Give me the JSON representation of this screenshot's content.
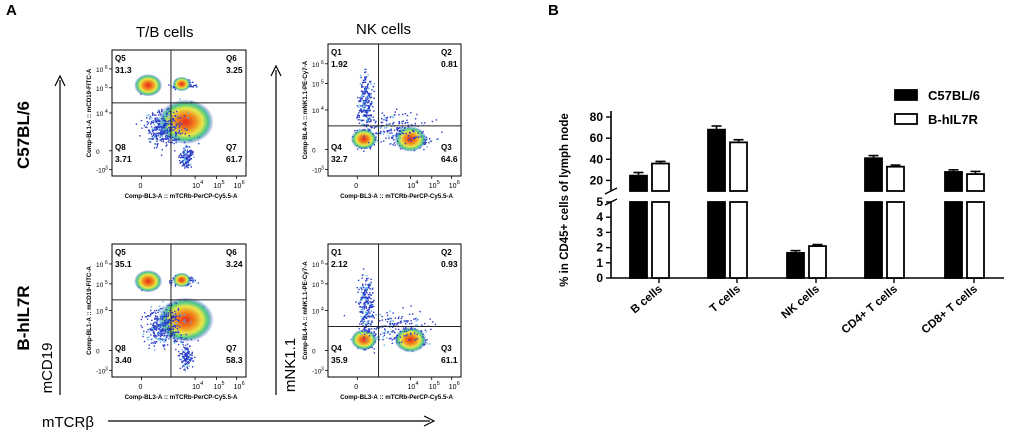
{
  "panels": {
    "a": "A",
    "b": "B"
  },
  "flow": {
    "col_titles": [
      "T/B cells",
      "NK cells"
    ],
    "row_labels": [
      "C57BL/6",
      "B-hIL7R"
    ],
    "axis_arrows": {
      "y_tb": "mCD19",
      "y_nk": "mNK1.1",
      "x": "mTCRβ"
    },
    "tb_y_label": "Comp-BL1-A :: mCD19-FITC-A",
    "tb_x_label": "Comp-BL3-A :: mTCRb-PerCP-Cy5.5-A",
    "nk_y_label": "Comp-BL4-A :: mNK1.1-PE-Cy7-A",
    "nk_x_label": "Comp-BL3-A :: mTCRb-PerCP-Cy5.5-A",
    "tick_labels": {
      "zero": "0",
      "e4": "10",
      "e5": "10",
      "e6": "10",
      "e4_exp": "4",
      "e5_exp": "5",
      "e6_exp": "6",
      "neg": "-10",
      "neg_exp": "3"
    },
    "plots": [
      {
        "gate": "tb",
        "quadrants": [
          {
            "name": "Q5",
            "value": "31.3"
          },
          {
            "name": "Q6",
            "value": "3.25"
          },
          {
            "name": "Q8",
            "value": "3.71"
          },
          {
            "name": "Q7",
            "value": "61.7"
          }
        ]
      },
      {
        "gate": "nk",
        "quadrants": [
          {
            "name": "Q1",
            "value": "1.92"
          },
          {
            "name": "Q2",
            "value": "0.81"
          },
          {
            "name": "Q4",
            "value": "32.7"
          },
          {
            "name": "Q3",
            "value": "64.6"
          }
        ]
      },
      {
        "gate": "tb",
        "quadrants": [
          {
            "name": "Q5",
            "value": "35.1"
          },
          {
            "name": "Q6",
            "value": "3.24"
          },
          {
            "name": "Q8",
            "value": "3.40"
          },
          {
            "name": "Q7",
            "value": "58.3"
          }
        ]
      },
      {
        "gate": "nk",
        "quadrants": [
          {
            "name": "Q1",
            "value": "2.12"
          },
          {
            "name": "Q2",
            "value": "0.93"
          },
          {
            "name": "Q4",
            "value": "35.9"
          },
          {
            "name": "Q3",
            "value": "61.1"
          }
        ]
      }
    ]
  },
  "colors": {
    "c57": "#000000",
    "bhil7r": "#ffffff",
    "density_high": "#e8281e",
    "density_low": "#2c3cc8"
  },
  "chart_data": {
    "type": "bar",
    "title": "",
    "xlabel": "",
    "ylabel": "% in CD45+ cells of lymph node",
    "categories": [
      "B cells",
      "T cells",
      "NK cells",
      "CD4+ T cells",
      "CD8+ T cells"
    ],
    "series": [
      {
        "name": "C57BL/6",
        "values": [
          24.5,
          68,
          1.65,
          41,
          28
        ],
        "errors": [
          3,
          3.5,
          0.15,
          2.5,
          2
        ]
      },
      {
        "name": "B-hIL7R",
        "values": [
          36,
          56,
          2.1,
          33,
          26
        ],
        "errors": [
          2,
          2.5,
          0.1,
          1.5,
          2.5
        ]
      }
    ],
    "axis_break": true,
    "y_lower": {
      "range": [
        0,
        5
      ],
      "ticks": [
        "0",
        "1",
        "2",
        "3",
        "4",
        "5"
      ]
    },
    "y_upper": {
      "range": [
        10,
        80
      ],
      "ticks": [
        "20",
        "40",
        "60",
        "80"
      ]
    },
    "legend_position": "top-right",
    "grid": false
  }
}
